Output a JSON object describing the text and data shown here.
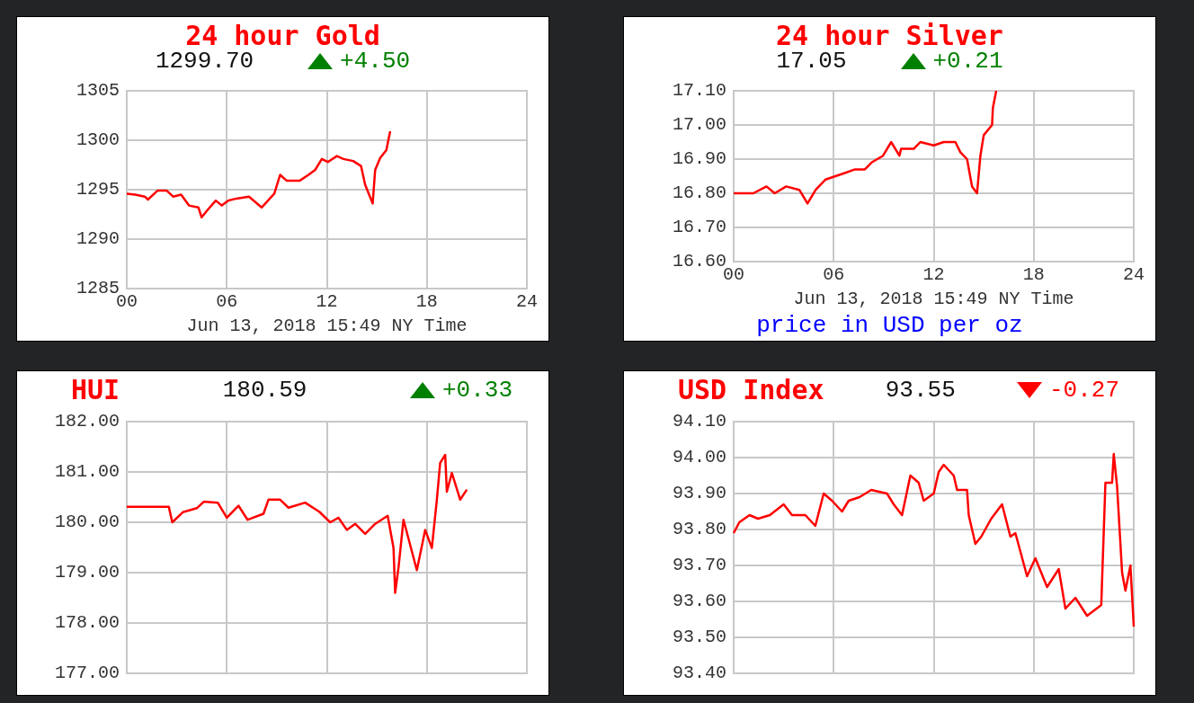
{
  "chart_data": [
    {
      "type": "line",
      "title": "24 hour Gold",
      "subtitle": "1299.70",
      "xlabel": "Jun 13, 2018 15:49 NY Time",
      "annotations": [
        "+4.50"
      ],
      "color": "#ff0000",
      "grid": true,
      "xlim": [
        0,
        24
      ],
      "xticks": [
        {
          "value": 0,
          "label": "00"
        },
        {
          "value": 6,
          "label": "06"
        },
        {
          "value": 12,
          "label": "12"
        },
        {
          "value": 18,
          "label": "18"
        },
        {
          "value": 24,
          "label": "24"
        }
      ],
      "ylim": [
        1285,
        1305
      ],
      "yticks": [
        1285,
        1290,
        1295,
        1300,
        1305
      ],
      "x": [
        0,
        0.5,
        1.08,
        1.27,
        1.84,
        2.4,
        2.78,
        3.26,
        3.73,
        4.3,
        4.49,
        4.87,
        5.34,
        5.7,
        6.1,
        6.57,
        7.33,
        8.09,
        8.85,
        9.2,
        9.6,
        10.36,
        10.9,
        11.3,
        11.7,
        12.06,
        12.6,
        13.0,
        13.58,
        14.05,
        14.3,
        14.75,
        14.9,
        15.2,
        15.57,
        15.8
      ],
      "values": [
        1294.6,
        1294.5,
        1294.3,
        1294.0,
        1294.9,
        1294.9,
        1294.3,
        1294.5,
        1293.4,
        1293.2,
        1292.2,
        1293.0,
        1293.9,
        1293.4,
        1293.9,
        1294.1,
        1294.3,
        1293.2,
        1294.6,
        1296.5,
        1295.9,
        1295.9,
        1296.5,
        1297.0,
        1298.1,
        1297.8,
        1298.4,
        1298.1,
        1297.9,
        1297.4,
        1295.5,
        1293.6,
        1297.0,
        1298.2,
        1299.0,
        1300.9
      ]
    },
    {
      "type": "line",
      "title": "24 hour Silver",
      "subtitle": "17.05",
      "xlabel": "Jun 13, 2018 15:49 NY Time",
      "annotations": [
        "+0.21",
        "price in USD per oz"
      ],
      "color": "#ff0000",
      "grid": true,
      "xlim": [
        0,
        24
      ],
      "xticks": [
        {
          "value": 0,
          "label": "00"
        },
        {
          "value": 6,
          "label": "06"
        },
        {
          "value": 12,
          "label": "12"
        },
        {
          "value": 18,
          "label": "18"
        },
        {
          "value": 24,
          "label": "24"
        }
      ],
      "ylim": [
        16.6,
        17.1
      ],
      "yticks": [
        {
          "value": 16.6,
          "label": "16.60"
        },
        {
          "value": 16.7,
          "label": "16.70"
        },
        {
          "value": 16.8,
          "label": "16.80"
        },
        {
          "value": 16.9,
          "label": "16.90"
        },
        {
          "value": 17.0,
          "label": "17.00"
        },
        {
          "value": 17.1,
          "label": "17.10"
        }
      ],
      "x": [
        0,
        1.18,
        1.97,
        2.46,
        3.15,
        3.94,
        4.43,
        4.92,
        5.5,
        6.1,
        6.7,
        7.28,
        7.87,
        8.27,
        8.96,
        9.45,
        9.94,
        10.04,
        10.8,
        11.2,
        12.0,
        12.6,
        13.3,
        13.6,
        14.0,
        14.3,
        14.6,
        14.8,
        15.0,
        15.5,
        15.55,
        15.75
      ],
      "values": [
        16.8,
        16.8,
        16.82,
        16.8,
        16.82,
        16.81,
        16.77,
        16.81,
        16.84,
        16.85,
        16.86,
        16.87,
        16.87,
        16.89,
        16.91,
        16.95,
        16.91,
        16.93,
        16.93,
        16.95,
        16.94,
        16.95,
        16.95,
        16.92,
        16.9,
        16.82,
        16.8,
        16.91,
        16.97,
        17.0,
        17.05,
        17.1
      ]
    },
    {
      "type": "line",
      "title": "HUI",
      "subtitle": "180.59",
      "annotations": [
        "+0.33"
      ],
      "color": "#ff0000",
      "grid": true,
      "tick_labels": "y",
      "xlim": [
        0,
        24
      ],
      "xticks": [
        {
          "value": 0,
          "label": null
        },
        {
          "value": 6,
          "label": null
        },
        {
          "value": 12,
          "label": null
        },
        {
          "value": 18,
          "label": null
        },
        {
          "value": 24,
          "label": null
        }
      ],
      "ylim": [
        177,
        182
      ],
      "yticks": [
        {
          "value": 177,
          "label": "177.00"
        },
        {
          "value": 178,
          "label": "178.00"
        },
        {
          "value": 179,
          "label": "179.00"
        },
        {
          "value": 180,
          "label": "180.00"
        },
        {
          "value": 181,
          "label": "181.00"
        },
        {
          "value": 182,
          "label": "182.00"
        }
      ],
      "x": [
        0,
        2.52,
        2.73,
        3.36,
        4.2,
        4.62,
        5.46,
        6.0,
        6.7,
        7.25,
        8.2,
        8.5,
        9.2,
        9.7,
        10.7,
        11.55,
        12.2,
        12.7,
        13.2,
        13.7,
        14.3,
        14.9,
        15.65,
        16.0,
        16.1,
        16.3,
        16.6,
        17.4,
        17.9,
        18.3,
        18.6,
        18.8,
        19.1,
        19.2,
        19.5,
        20.0,
        20.4
      ],
      "values": [
        180.31,
        180.31,
        180.0,
        180.2,
        180.28,
        180.41,
        180.39,
        180.09,
        180.33,
        180.05,
        180.17,
        180.45,
        180.45,
        180.29,
        180.39,
        180.21,
        180.0,
        180.09,
        179.85,
        179.97,
        179.77,
        179.97,
        180.13,
        179.49,
        178.6,
        179.1,
        180.05,
        179.05,
        179.85,
        179.49,
        180.45,
        181.18,
        181.34,
        180.61,
        180.98,
        180.45,
        180.65
      ]
    },
    {
      "type": "line",
      "title": "USD Index",
      "subtitle": "93.55",
      "annotations": [
        "-0.27"
      ],
      "color": "#ff0000",
      "grid": true,
      "tick_labels": "y",
      "xlim": [
        0,
        24
      ],
      "xticks": [
        {
          "value": 0,
          "label": null
        },
        {
          "value": 6,
          "label": null
        },
        {
          "value": 12,
          "label": null
        },
        {
          "value": 18,
          "label": null
        },
        {
          "value": 24,
          "label": null
        }
      ],
      "ylim": [
        93.4,
        94.1
      ],
      "yticks": [
        {
          "value": 93.4,
          "label": "93.40"
        },
        {
          "value": 93.5,
          "label": "93.50"
        },
        {
          "value": 93.6,
          "label": "93.60"
        },
        {
          "value": 93.7,
          "label": "93.70"
        },
        {
          "value": 93.8,
          "label": "93.80"
        },
        {
          "value": 93.9,
          "label": "93.90"
        },
        {
          "value": 94.0,
          "label": "94.00"
        },
        {
          "value": 94.1,
          "label": "94.10"
        }
      ],
      "x": [
        0,
        0.34,
        0.95,
        1.46,
        2.17,
        3.0,
        3.5,
        4.3,
        4.9,
        5.4,
        5.9,
        6.5,
        6.9,
        7.55,
        8.25,
        9.2,
        9.6,
        10.1,
        10.6,
        11.1,
        11.4,
        12.0,
        12.3,
        12.6,
        13.2,
        13.4,
        14.0,
        14.1,
        14.5,
        14.85,
        15.45,
        16.1,
        16.6,
        16.9,
        17.6,
        18.1,
        18.8,
        19.5,
        19.9,
        20.5,
        21.2,
        22.05,
        22.3,
        22.7,
        22.8,
        23.0,
        23.3,
        23.5,
        23.8,
        24.0
      ],
      "values": [
        93.79,
        93.82,
        93.84,
        93.83,
        93.84,
        93.87,
        93.84,
        93.84,
        93.81,
        93.9,
        93.88,
        93.85,
        93.88,
        93.89,
        93.91,
        93.9,
        93.87,
        93.84,
        93.95,
        93.93,
        93.88,
        93.9,
        93.96,
        93.98,
        93.95,
        93.91,
        93.91,
        93.84,
        93.76,
        93.78,
        93.83,
        93.87,
        93.78,
        93.79,
        93.67,
        93.72,
        93.64,
        93.69,
        93.58,
        93.61,
        93.56,
        93.59,
        93.93,
        93.93,
        94.01,
        93.92,
        93.68,
        93.63,
        93.7,
        93.53
      ]
    }
  ]
}
